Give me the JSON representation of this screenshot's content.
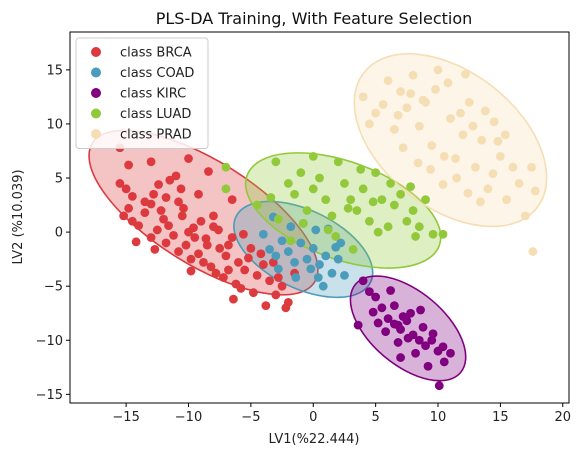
{
  "chart_data": {
    "type": "scatter",
    "title": "PLS-DA Training, With Feature Selection",
    "xlabel": "LV1(%22.444)",
    "ylabel": "LV2 (%10.039)",
    "xlim": [
      -19.5,
      20.5
    ],
    "ylim": [
      -15.8,
      18.5
    ],
    "xticks": [
      -15,
      -10,
      -5,
      0,
      5,
      10,
      15,
      20
    ],
    "yticks": [
      -15,
      -10,
      -5,
      0,
      5,
      10,
      15
    ],
    "grid": false,
    "legend_position": "top-left",
    "series": [
      {
        "name": "class BRCA",
        "color": "#dc3a3e",
        "ellipse": {
          "cx": -8.8,
          "cy": 1.8,
          "rx": 10.5,
          "ry": 4.8,
          "angle_deg": -32
        },
        "points": [
          [
            -15.5,
            4.5
          ],
          [
            -15,
            4
          ],
          [
            -14.5,
            3.3
          ],
          [
            -14.8,
            2.2
          ],
          [
            -15.2,
            1.5
          ],
          [
            -14.5,
            1
          ],
          [
            -14,
            0.6
          ],
          [
            -13.5,
            1.8
          ],
          [
            -13,
            2.6
          ],
          [
            -12.8,
            3.5
          ],
          [
            -12.2,
            2
          ],
          [
            -12,
            1.2
          ],
          [
            -11.5,
            4.8
          ],
          [
            -11,
            5.2
          ],
          [
            -10.8,
            2.8
          ],
          [
            -10.5,
            1.5
          ],
          [
            -10,
            0
          ],
          [
            -9.5,
            -0.5
          ],
          [
            -9,
            1
          ],
          [
            -8.5,
            -1.2
          ],
          [
            -8,
            0.5
          ],
          [
            -7.5,
            -1.5
          ],
          [
            -7,
            -2.2
          ],
          [
            -6.5,
            -0.5
          ],
          [
            -6,
            -2.8
          ],
          [
            -5.5,
            -3.5
          ],
          [
            -5,
            -1.5
          ],
          [
            -4.5,
            -4
          ],
          [
            -4,
            -3
          ],
          [
            -3.5,
            -4.5
          ],
          [
            -3,
            -5.8
          ],
          [
            -2.5,
            -5
          ],
          [
            -2,
            -6.5
          ],
          [
            -1.5,
            -3.8
          ],
          [
            -13,
            -0.5
          ],
          [
            -12.5,
            0.2
          ],
          [
            -11.8,
            -1
          ],
          [
            -11.2,
            -0.3
          ],
          [
            -10.8,
            -1.8
          ],
          [
            -10.2,
            -1.2
          ],
          [
            -9.8,
            -2.5
          ],
          [
            -9.2,
            -2
          ],
          [
            -8.8,
            -2.8
          ],
          [
            -8.2,
            -3.2
          ],
          [
            -7.8,
            -3.8
          ],
          [
            -7.2,
            -4.2
          ],
          [
            -6.8,
            -3.5
          ],
          [
            -6.2,
            -4.8
          ],
          [
            -5.8,
            -5.2
          ],
          [
            -15.5,
            7.8
          ],
          [
            -14.8,
            6.2
          ],
          [
            -13,
            6.5
          ],
          [
            -10,
            6.8
          ],
          [
            -6.5,
            3
          ],
          [
            -8,
            1.5
          ],
          [
            -9.2,
            3.5
          ],
          [
            -11.8,
            3.2
          ],
          [
            -13.5,
            2.8
          ],
          [
            -14.2,
            -0.9
          ],
          [
            -12.7,
            -1.6
          ],
          [
            -9.6,
            0.4
          ],
          [
            -10.4,
            2.2
          ],
          [
            -7.6,
            0.2
          ],
          [
            -8.6,
            -0.6
          ],
          [
            -6.8,
            -1.2
          ],
          [
            -5.2,
            -2.4
          ],
          [
            -4.2,
            -2
          ],
          [
            -3.2,
            -2.8
          ],
          [
            -2.8,
            -4.2
          ],
          [
            -4.8,
            -5.6
          ],
          [
            -6.4,
            -6.2
          ],
          [
            -3.8,
            -6.8
          ],
          [
            -2.2,
            -7
          ],
          [
            -5.6,
            -0.2
          ],
          [
            -10.6,
            4
          ],
          [
            -12.4,
            4.4
          ],
          [
            -8.4,
            5.6
          ],
          [
            -11.6,
            0.6
          ],
          [
            -9.8,
            -3.6
          ]
        ]
      },
      {
        "name": "class COAD",
        "color": "#4a9cba",
        "ellipse": {
          "cx": -0.8,
          "cy": -1.6,
          "rx": 6.0,
          "ry": 3.6,
          "angle_deg": -26
        },
        "points": [
          [
            -4,
            -0.2
          ],
          [
            -3.5,
            -1.6
          ],
          [
            -3,
            -2.2
          ],
          [
            -2.5,
            -0.8
          ],
          [
            -2,
            -1.8
          ],
          [
            -1.5,
            -2.8
          ],
          [
            -1,
            -1
          ],
          [
            -0.5,
            -2.5
          ],
          [
            0,
            -1.5
          ],
          [
            0.5,
            -3
          ],
          [
            1,
            -2.2
          ],
          [
            1.5,
            -3.8
          ],
          [
            2,
            -2.5
          ],
          [
            2.5,
            -4
          ],
          [
            -1.8,
            0.5
          ],
          [
            -0.8,
            0.8
          ],
          [
            0.2,
            0.2
          ],
          [
            1.2,
            0.3
          ],
          [
            -3.2,
            1.4
          ],
          [
            0.4,
            -4.2
          ],
          [
            -0.2,
            -3.4
          ],
          [
            1.8,
            -1.4
          ],
          [
            -2.8,
            -3.4
          ],
          [
            0.8,
            -5
          ],
          [
            2.2,
            -1
          ],
          [
            -1.4,
            -4.2
          ]
        ]
      },
      {
        "name": "class KIRC",
        "color": "#800080",
        "ellipse": {
          "cx": 7.6,
          "cy": -8.9,
          "rx": 5.5,
          "ry": 3.4,
          "angle_deg": -40
        },
        "points": [
          [
            4,
            -4.5
          ],
          [
            4.5,
            -5.5
          ],
          [
            5,
            -6
          ],
          [
            5.5,
            -7
          ],
          [
            6,
            -8
          ],
          [
            6.5,
            -8.5
          ],
          [
            7,
            -9
          ],
          [
            7.5,
            -8.2
          ],
          [
            8,
            -9.5
          ],
          [
            8.5,
            -10
          ],
          [
            9,
            -10.5
          ],
          [
            9.5,
            -10
          ],
          [
            10,
            -11
          ],
          [
            10.5,
            -12
          ],
          [
            11,
            -11.2
          ],
          [
            5.8,
            -9.2
          ],
          [
            6.8,
            -10.2
          ],
          [
            7.8,
            -7.5
          ],
          [
            8.8,
            -8.8
          ],
          [
            3.6,
            -8.6
          ],
          [
            10.1,
            -14.2
          ],
          [
            6.5,
            -6.8
          ],
          [
            7.2,
            -7.8
          ],
          [
            8.2,
            -11.2
          ],
          [
            9.2,
            -12.4
          ],
          [
            5.2,
            -8.4
          ],
          [
            6.2,
            -5.4
          ],
          [
            7.6,
            -9.8
          ],
          [
            8.6,
            -7.2
          ],
          [
            9.6,
            -9.4
          ],
          [
            4.8,
            -7.4
          ],
          [
            7,
            -11.6
          ],
          [
            10.4,
            -10.6
          ],
          [
            6.8,
            -8.6
          ]
        ]
      },
      {
        "name": "class LUAD",
        "color": "#92c93a",
        "ellipse": {
          "cx": 2.4,
          "cy": 2.0,
          "rx": 8.2,
          "ry": 4.5,
          "angle_deg": -20
        },
        "points": [
          [
            -7,
            6
          ],
          [
            -7,
            4
          ],
          [
            -3,
            6.5
          ],
          [
            -2,
            4.5
          ],
          [
            -1.5,
            3.5
          ],
          [
            -1,
            5.5
          ],
          [
            -0.5,
            2
          ],
          [
            0,
            4
          ],
          [
            0.5,
            5
          ],
          [
            1,
            3
          ],
          [
            1.5,
            1.5
          ],
          [
            2,
            6.5
          ],
          [
            2.5,
            4.5
          ],
          [
            3,
            3
          ],
          [
            3.5,
            2
          ],
          [
            4,
            4
          ],
          [
            4.5,
            1
          ],
          [
            5,
            5.5
          ],
          [
            5.5,
            3
          ],
          [
            6,
            0.5
          ],
          [
            6.5,
            2.5
          ],
          [
            7,
            3.5
          ],
          [
            7.5,
            1
          ],
          [
            8,
            2
          ],
          [
            8.5,
            0.5
          ],
          [
            9,
            3
          ],
          [
            -4.5,
            2.5
          ],
          [
            -2.8,
            1.2
          ],
          [
            0,
            7
          ],
          [
            -1.8,
            -0.8
          ],
          [
            3.2,
            -1.6
          ],
          [
            1.2,
            0.2
          ],
          [
            -0.8,
            0.8
          ],
          [
            2.8,
            2.2
          ],
          [
            4.8,
            2.8
          ],
          [
            6.2,
            4.5
          ],
          [
            7.8,
            4.2
          ],
          [
            5.2,
            0
          ],
          [
            3.8,
            5.8
          ],
          [
            -3.4,
            3.2
          ],
          [
            8.2,
            -0.4
          ],
          [
            9.6,
            -0.2
          ],
          [
            10.4,
            -0.2
          ],
          [
            1.8,
            -0.4
          ]
        ]
      },
      {
        "name": "class PRAD",
        "color": "#f5deb3",
        "ellipse": {
          "cx": 11.0,
          "cy": 8.5,
          "rx": 8.8,
          "ry": 6.3,
          "angle_deg": -38
        },
        "points": [
          [
            4,
            12.5
          ],
          [
            4.5,
            10
          ],
          [
            5,
            11
          ],
          [
            6,
            14
          ],
          [
            6.5,
            9.5
          ],
          [
            7,
            13
          ],
          [
            7.5,
            11.5
          ],
          [
            8,
            14.5
          ],
          [
            8.5,
            9.8
          ],
          [
            9,
            12
          ],
          [
            9.5,
            8
          ],
          [
            10,
            15
          ],
          [
            10.5,
            7
          ],
          [
            11,
            10.5
          ],
          [
            11.5,
            5
          ],
          [
            12,
            9
          ],
          [
            12.5,
            12
          ],
          [
            13,
            6
          ],
          [
            13.5,
            8.5
          ],
          [
            14,
            4
          ],
          [
            14.5,
            10.2
          ],
          [
            15,
            7
          ],
          [
            15.5,
            3
          ],
          [
            16,
            6
          ],
          [
            16.5,
            4.5
          ],
          [
            17,
            1.5
          ],
          [
            17.5,
            6
          ],
          [
            17.8,
            3.8
          ],
          [
            8.8,
            12.2
          ],
          [
            9.8,
            13.2
          ],
          [
            10.8,
            13.8
          ],
          [
            11.8,
            11
          ],
          [
            12.8,
            9.8
          ],
          [
            13.8,
            11.2
          ],
          [
            14.8,
            8.4
          ],
          [
            6.8,
            10.8
          ],
          [
            7.8,
            12.8
          ],
          [
            8.4,
            6.4
          ],
          [
            9.4,
            5.8
          ],
          [
            10.4,
            4.4
          ],
          [
            11.4,
            6.8
          ],
          [
            12.4,
            3.6
          ],
          [
            13.4,
            2.8
          ],
          [
            14.4,
            5.4
          ],
          [
            15.4,
            9
          ],
          [
            5.6,
            11.8
          ],
          [
            7.2,
            7.8
          ],
          [
            12.2,
            14.6
          ],
          [
            17.6,
            -1.8
          ]
        ]
      }
    ]
  }
}
